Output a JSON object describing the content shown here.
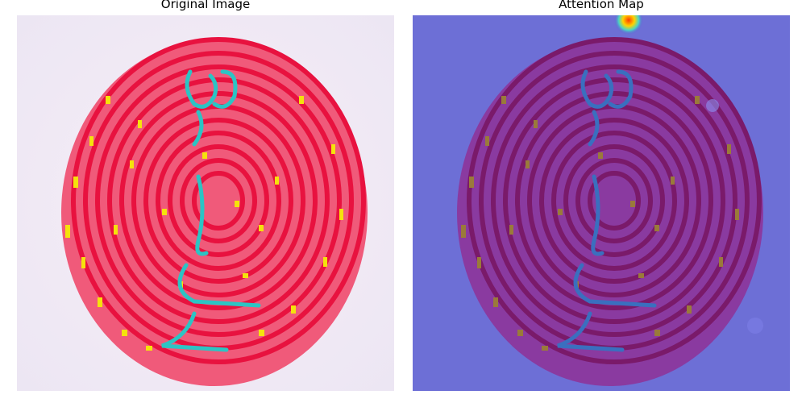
{
  "panels": [
    {
      "title": "Original Image"
    },
    {
      "title": "Attention Map"
    }
  ]
}
